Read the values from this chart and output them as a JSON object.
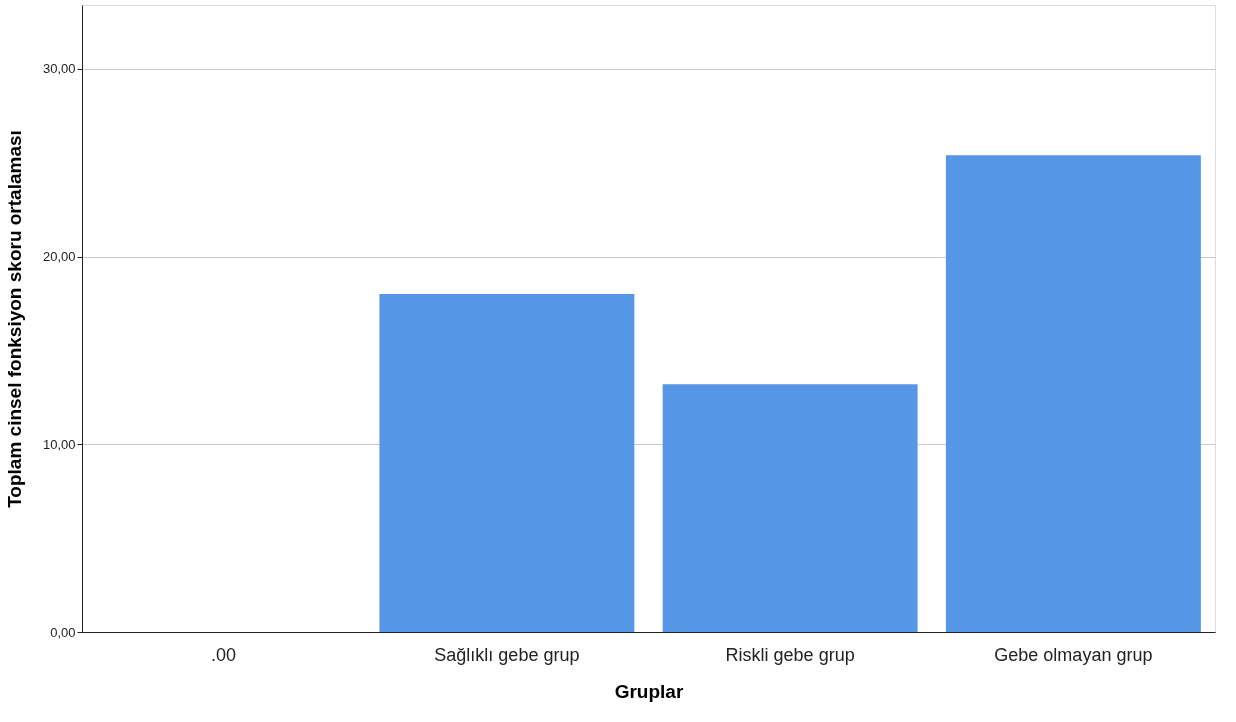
{
  "chart_data": {
    "type": "bar",
    "xlabel": "Gruplar",
    "ylabel": "Toplam cinsel fonksiyon skoru ortalaması",
    "categories": [
      ".00",
      "Sağlıklı gebe grup",
      "Riskli gebe grup",
      "Gebe olmayan grup"
    ],
    "values": [
      null,
      18.0,
      13.2,
      25.4
    ],
    "color": "#5596e6",
    "ylim": [
      0,
      33.4
    ],
    "yticks": [
      {
        "value": 0,
        "label": "0,00"
      },
      {
        "value": 10,
        "label": "10,00"
      },
      {
        "value": 20,
        "label": "20,00"
      },
      {
        "value": 30,
        "label": "30,00"
      }
    ],
    "grid": "y"
  }
}
